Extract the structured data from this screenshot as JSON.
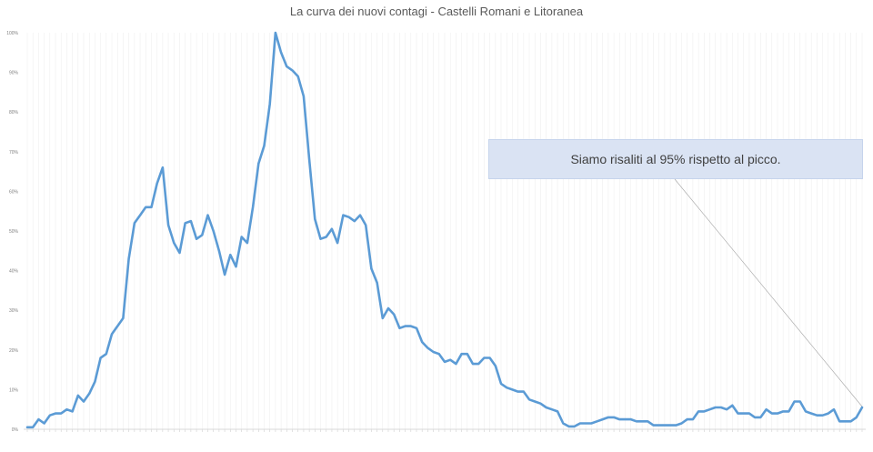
{
  "chart_data": {
    "type": "line",
    "title": "La curva dei nuovi contagi - Castelli Romani e Litoranea",
    "xlabel": "",
    "ylabel": "",
    "ylim": [
      0,
      100
    ],
    "yticks": [
      "0%",
      "10%",
      "20%",
      "30%",
      "40%",
      "50%",
      "60%",
      "70%",
      "80%",
      "90%",
      "100%"
    ],
    "grid": true,
    "legend": "none",
    "series_color": "#5b9bd5",
    "annotation": "Siamo risaliti al 95% rispetto al picco.",
    "series": [
      {
        "values": [
          0.5,
          0.5,
          2.5,
          1.5,
          3.5,
          4,
          4,
          5,
          4.5,
          8.5,
          7,
          9,
          12,
          18,
          19,
          24,
          26,
          28,
          43,
          52,
          54,
          56,
          56,
          62,
          66,
          51.5,
          47,
          44.5,
          52,
          52.5,
          48,
          49,
          54,
          50,
          45,
          39,
          44,
          41,
          48.5,
          47,
          56,
          67,
          71.5,
          82,
          100,
          95,
          91.5,
          90.5,
          89,
          84,
          68,
          53,
          48,
          48.5,
          50.5,
          47,
          54,
          53.5,
          52.5,
          54,
          51.5,
          40.5,
          37,
          28,
          30.5,
          29,
          25.5,
          26,
          26,
          25.5,
          22,
          20.5,
          19.5,
          19,
          17,
          17.5,
          16.5,
          19,
          19,
          16.5,
          16.5,
          18,
          18,
          16,
          11.5,
          10.5,
          10,
          9.5,
          9.5,
          7.5,
          7,
          6.5,
          5.5,
          5,
          4.5,
          1.5,
          0.7,
          0.7,
          1.5,
          1.5,
          1.5,
          2,
          2.5,
          3,
          3,
          2.5,
          2.5,
          2.5,
          2,
          2,
          2,
          1,
          1,
          1,
          1,
          1,
          1.5,
          2.5,
          2.5,
          4.5,
          4.5,
          5,
          5.5,
          5.5,
          5,
          6,
          4,
          4,
          4,
          3,
          3,
          5,
          4,
          4,
          4.5,
          4.5,
          7,
          7,
          4.5,
          4,
          3.5,
          3.5,
          4,
          5,
          2,
          2,
          2,
          3,
          5.5
        ]
      }
    ]
  }
}
